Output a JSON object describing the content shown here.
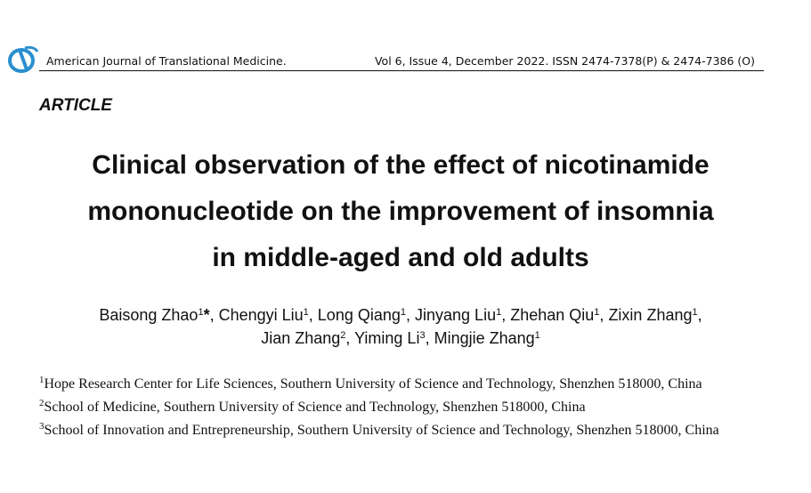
{
  "header": {
    "journal": "American Journal of Translational Medicine.",
    "issue": "Vol 6, Issue 4, December 2022. ISSN 2474-7378(P) & 2474-7386 (O)"
  },
  "article_type": "ARTICLE",
  "title_lines": [
    "Clinical observation of the effect of nicotinamide",
    "mononucleotide on the improvement of insomnia",
    "in middle-aged and old adults"
  ],
  "author_lines": [
    [
      {
        "name": "Baisong Zhao",
        "affiliation": "1",
        "marker": "*"
      },
      {
        "name": "Chengyi Liu",
        "affiliation": "1"
      },
      {
        "name": "Long Qiang",
        "affiliation": "1"
      },
      {
        "name": "Jinyang Liu",
        "affiliation": "1"
      },
      {
        "name": "Zhehan Qiu",
        "affiliation": "1"
      },
      {
        "name": "Zixin Zhang",
        "affiliation": "1"
      }
    ],
    [
      {
        "name": "Jian Zhang",
        "affiliation": "2"
      },
      {
        "name": "Yiming Li",
        "affiliation": "3"
      },
      {
        "name": "Mingjie Zhang",
        "affiliation": "1"
      }
    ]
  ],
  "affiliations": [
    {
      "number": "1",
      "text": "Hope Research Center for Life Sciences, Southern University of Science and Technology, Shenzhen 518000, China"
    },
    {
      "number": "2",
      "text": "School of Medicine, Southern University of Science and Technology, Shenzhen 518000, China"
    },
    {
      "number": "3",
      "text": "School of Innovation and Entrepreneurship, Southern University of Science and Technology, Shenzhen 518000, China"
    }
  ]
}
